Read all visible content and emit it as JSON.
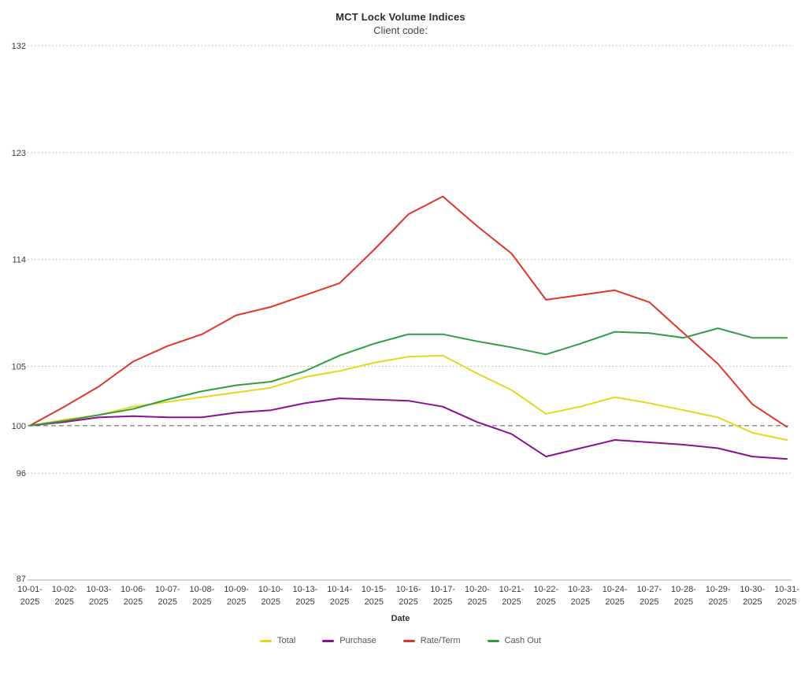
{
  "header": {
    "title": "MCT Lock Volume Indices",
    "subtitle": "Client code:"
  },
  "chart_data": {
    "type": "line",
    "title": "MCT Lock Volume Indices",
    "subtitle": "Client code:",
    "xlabel": "Date",
    "ylabel": "",
    "ylim": [
      87,
      132
    ],
    "y_ticks": [
      87,
      96,
      100,
      105,
      114,
      123,
      132
    ],
    "reference_line_y": 100,
    "grid": "horizontal-dotted",
    "legend_position": "bottom",
    "x_categories": [
      "10-01-2025",
      "10-02-2025",
      "10-03-2025",
      "10-06-2025",
      "10-07-2025",
      "10-08-2025",
      "10-09-2025",
      "10-10-2025",
      "10-13-2025",
      "10-14-2025",
      "10-15-2025",
      "10-16-2025",
      "10-17-2025",
      "10-20-2025",
      "10-21-2025",
      "10-22-2025",
      "10-23-2025",
      "10-24-2025",
      "10-27-2025",
      "10-28-2025",
      "10-29-2025",
      "10-30-2025",
      "10-31-2025"
    ],
    "series": [
      {
        "name": "Total",
        "color": "#e3d81e",
        "values": [
          100.0,
          100.5,
          100.9,
          101.6,
          102.0,
          102.4,
          102.8,
          103.2,
          104.1,
          104.6,
          105.3,
          105.8,
          105.9,
          104.4,
          103.0,
          101.0,
          101.6,
          102.4,
          101.9,
          101.3,
          100.7,
          99.4,
          98.8
        ]
      },
      {
        "name": "Purchase",
        "color": "#8b0f93",
        "values": [
          100.0,
          100.3,
          100.7,
          100.8,
          100.7,
          100.7,
          101.1,
          101.3,
          101.9,
          102.3,
          102.2,
          102.1,
          101.6,
          100.3,
          99.3,
          97.4,
          98.1,
          98.8,
          98.6,
          98.4,
          98.1,
          97.4,
          97.2
        ]
      },
      {
        "name": "Rate/Term",
        "color": "#e1342a",
        "values": [
          100.0,
          101.6,
          103.3,
          105.4,
          106.7,
          107.7,
          109.3,
          110.0,
          111.0,
          112.0,
          114.8,
          117.8,
          119.3,
          116.8,
          114.5,
          110.6,
          111.0,
          111.4,
          110.4,
          107.8,
          105.2,
          101.8,
          99.9
        ]
      },
      {
        "name": "Cash Out",
        "color": "#2f9e41",
        "values": [
          100.0,
          100.4,
          100.9,
          101.4,
          102.2,
          102.9,
          103.4,
          103.7,
          104.6,
          105.9,
          106.9,
          107.7,
          107.7,
          107.1,
          106.6,
          106.0,
          106.9,
          107.9,
          107.8,
          107.4,
          108.2,
          107.4,
          107.4
        ]
      }
    ]
  }
}
